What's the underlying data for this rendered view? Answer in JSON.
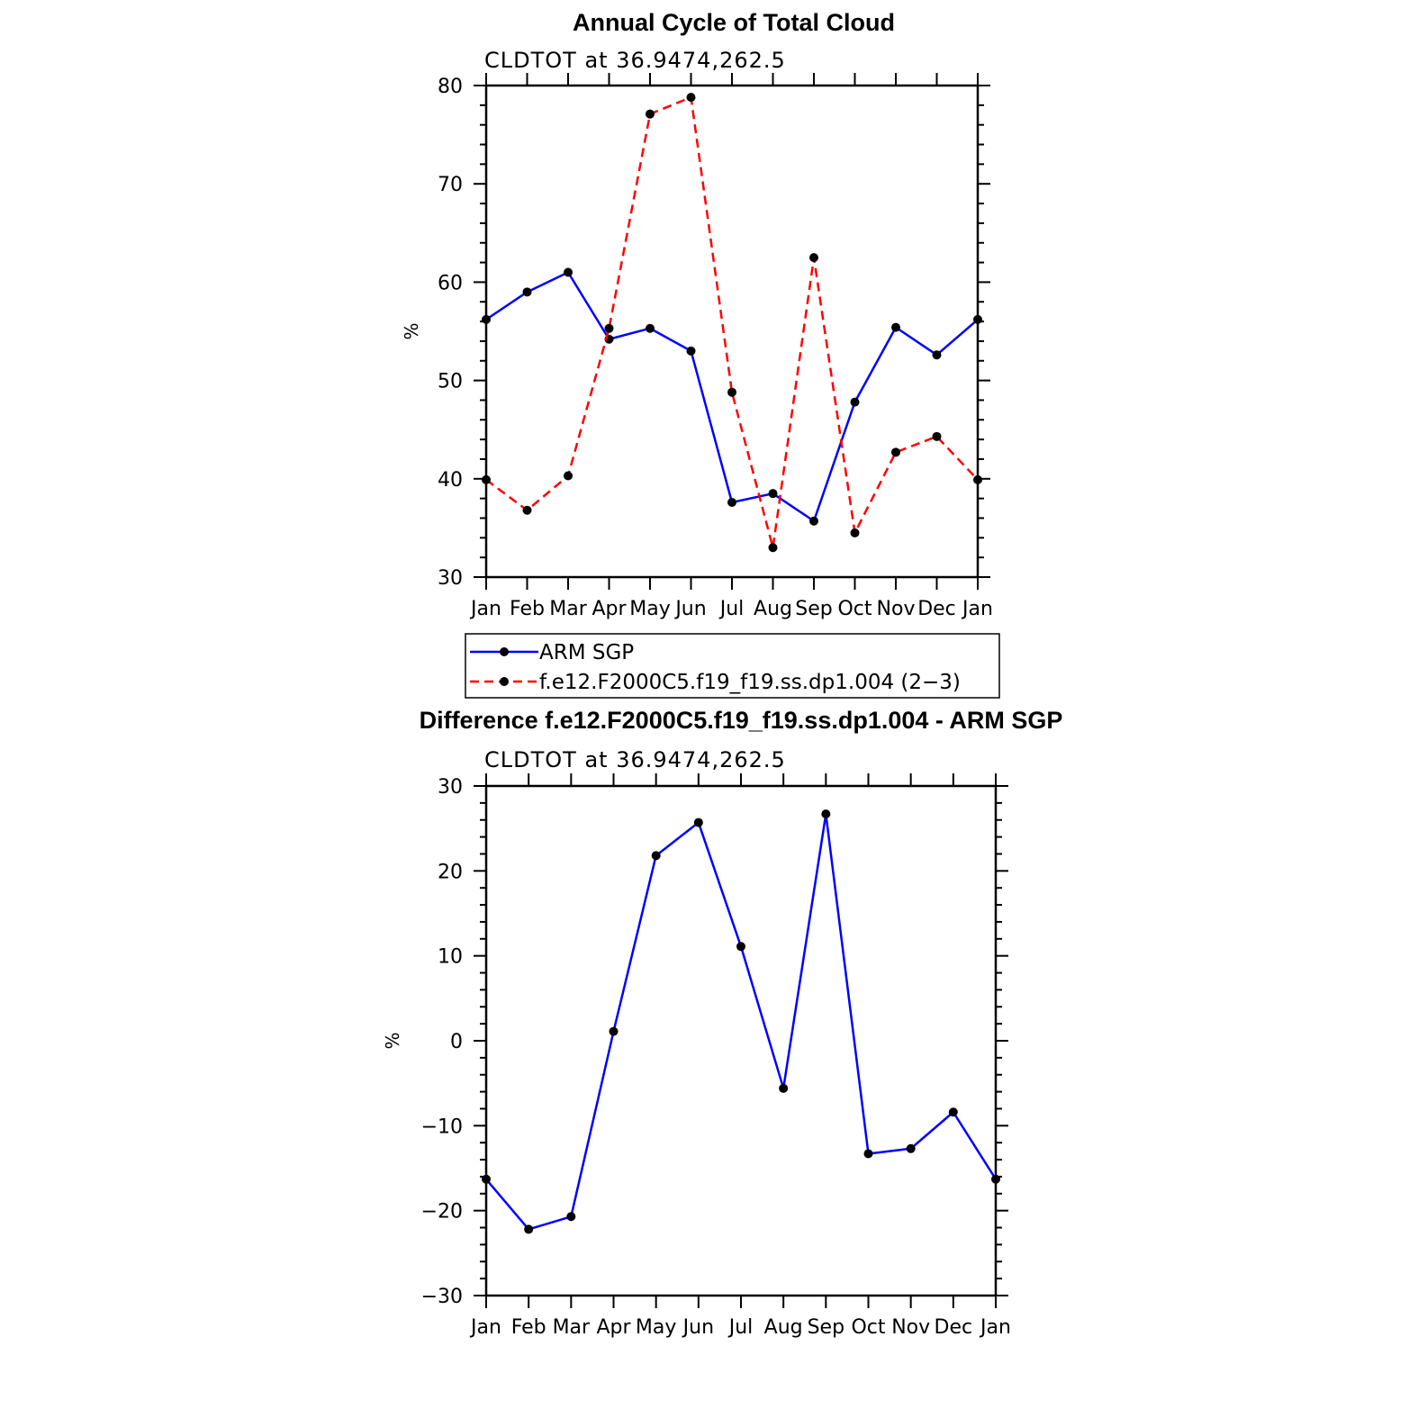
{
  "chart_data": [
    {
      "type": "line",
      "title": "Annual Cycle of Total Cloud",
      "subtitle": "CLDTOT at 36.9474,262.5",
      "xlabel": "",
      "ylabel": "%",
      "categories": [
        "Jan",
        "Feb",
        "Mar",
        "Apr",
        "May",
        "Jun",
        "Jul",
        "Aug",
        "Sep",
        "Oct",
        "Nov",
        "Dec",
        "Jan"
      ],
      "ylim": [
        30,
        80
      ],
      "yticks": [
        30,
        40,
        50,
        60,
        70,
        80
      ],
      "series": [
        {
          "name": "ARM SGP",
          "color": "#0000ff",
          "dash": "solid",
          "values": [
            56.2,
            59.0,
            61.0,
            54.2,
            55.3,
            53.0,
            37.6,
            38.5,
            35.7,
            47.8,
            55.4,
            52.6,
            56.2
          ]
        },
        {
          "name": "f.e12.F2000C5.f19_f19.ss.dp1.004 (2−3)",
          "color": "#ff0000",
          "dash": "dashed",
          "values": [
            39.9,
            36.8,
            40.3,
            55.3,
            77.1,
            78.8,
            48.8,
            33.0,
            62.5,
            34.5,
            42.7,
            44.3,
            39.9
          ]
        }
      ],
      "legend": {
        "position": "below"
      }
    },
    {
      "type": "line",
      "title": "Difference f.e12.F2000C5.f19_f19.ss.dp1.004 - ARM SGP",
      "subtitle": "CLDTOT at 36.9474,262.5",
      "xlabel": "",
      "ylabel": "%",
      "categories": [
        "Jan",
        "Feb",
        "Mar",
        "Apr",
        "May",
        "Jun",
        "Jul",
        "Aug",
        "Sep",
        "Oct",
        "Nov",
        "Dec",
        "Jan"
      ],
      "ylim": [
        -30,
        30
      ],
      "yticks": [
        -30,
        -20,
        -10,
        0,
        10,
        20,
        30
      ],
      "ytick_labels": [
        "−30",
        "−20",
        "−10",
        "0",
        "10",
        "20",
        "30"
      ],
      "series": [
        {
          "name": "Difference",
          "color": "#0000ff",
          "dash": "solid",
          "values": [
            -16.3,
            -22.2,
            -20.7,
            1.1,
            21.8,
            25.7,
            11.1,
            -5.6,
            26.7,
            -13.3,
            -12.7,
            -8.4,
            -16.3
          ]
        }
      ]
    }
  ]
}
